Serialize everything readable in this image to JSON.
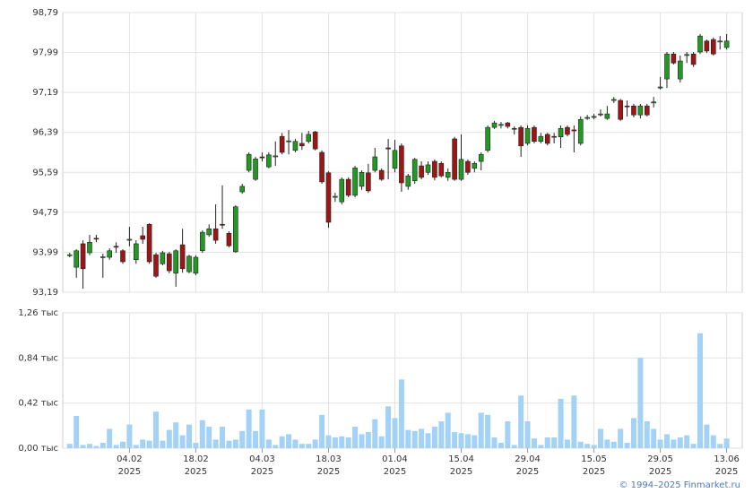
{
  "chart_data": [
    {
      "type": "candlestick",
      "ylim": [
        93.19,
        98.79
      ],
      "yticks": [
        {
          "value": 93.19,
          "label": "93,19"
        },
        {
          "value": 93.99,
          "label": "93,99"
        },
        {
          "value": 94.79,
          "label": "94,79"
        },
        {
          "value": 95.59,
          "label": "95,59"
        },
        {
          "value": 96.39,
          "label": "96,39"
        },
        {
          "value": 97.19,
          "label": "97,19"
        },
        {
          "value": 97.99,
          "label": "97,99"
        },
        {
          "value": 98.79,
          "label": "98,79"
        }
      ],
      "grid": true,
      "up_color": "#229922",
      "down_color": "#9e1515",
      "open": [
        93.93,
        93.69,
        94.16,
        93.98,
        94.27,
        93.89,
        93.89,
        94.11,
        94.02,
        94.23,
        93.84,
        94.32,
        94.55,
        93.94,
        93.76,
        93.96,
        93.57,
        94.14,
        93.6,
        93.57,
        94.02,
        94.34,
        94.46,
        94.55,
        94.37,
        94.0,
        95.2,
        95.63,
        95.45,
        95.9,
        95.7,
        95.9,
        96.31,
        96.21,
        96.03,
        96.17,
        96.21,
        96.4,
        95.99,
        95.58,
        95.09,
        95.0,
        95.45,
        95.13,
        95.31,
        95.58,
        95.63,
        95.63,
        96.08,
        95.67,
        96.12,
        95.31,
        95.42,
        95.72,
        95.59,
        95.81,
        95.77,
        95.49,
        96.26,
        95.45,
        95.81,
        95.67,
        95.81,
        96.03,
        96.49,
        96.53,
        96.58,
        96.47,
        96.49,
        96.17,
        96.49,
        96.21,
        96.35,
        96.31,
        96.3,
        96.49,
        96.44,
        96.17,
        96.67,
        96.69,
        96.74,
        96.67,
        97.03,
        97.03,
        96.92,
        96.92,
        96.74,
        96.92,
        96.98,
        97.28,
        97.46,
        97.96,
        97.46,
        97.93,
        97.96,
        98.0,
        98.22,
        98.25,
        98.2,
        98.09
      ],
      "high": [
        93.98,
        94.05,
        94.23,
        94.34,
        94.34,
        93.96,
        94.07,
        94.19,
        94.05,
        94.5,
        94.23,
        94.5,
        94.57,
        93.98,
        94.02,
        94.0,
        94.05,
        94.46,
        93.94,
        93.93,
        94.43,
        94.55,
        94.95,
        95.33,
        94.41,
        94.93,
        95.36,
        95.99,
        95.9,
        95.99,
        95.99,
        96.21,
        96.38,
        96.44,
        96.26,
        96.38,
        96.42,
        96.42,
        96.03,
        95.61,
        95.18,
        95.49,
        95.49,
        95.72,
        95.63,
        95.76,
        96.08,
        95.67,
        96.26,
        96.24,
        96.17,
        95.56,
        95.88,
        95.81,
        95.81,
        95.85,
        95.81,
        95.67,
        96.3,
        96.35,
        95.85,
        95.81,
        95.99,
        96.53,
        96.62,
        96.6,
        96.6,
        96.51,
        96.53,
        96.53,
        96.53,
        96.38,
        96.38,
        96.38,
        96.53,
        96.53,
        96.53,
        96.71,
        96.74,
        96.76,
        96.85,
        96.92,
        97.1,
        97.06,
        97.03,
        96.96,
        96.96,
        96.96,
        97.1,
        97.5,
        98.0,
        98.0,
        97.93,
        98.0,
        98.0,
        98.36,
        98.25,
        98.29,
        98.32,
        98.36
      ],
      "low": [
        93.89,
        93.48,
        93.26,
        93.93,
        94.19,
        93.48,
        93.84,
        93.98,
        93.76,
        94.11,
        93.76,
        94.16,
        93.76,
        93.48,
        93.73,
        93.57,
        93.3,
        93.58,
        93.57,
        93.53,
        93.98,
        94.3,
        94.16,
        94.46,
        94.09,
        93.98,
        95.16,
        95.59,
        95.42,
        95.81,
        95.67,
        95.72,
        95.95,
        95.95,
        95.99,
        96.04,
        96.17,
        96.03,
        95.36,
        94.48,
        95.0,
        94.95,
        95.09,
        95.09,
        95.24,
        95.18,
        95.59,
        95.42,
        95.45,
        95.59,
        95.2,
        95.24,
        95.36,
        95.45,
        95.54,
        95.43,
        95.49,
        95.42,
        95.42,
        95.42,
        95.54,
        95.59,
        95.63,
        95.99,
        96.46,
        96.47,
        96.47,
        96.35,
        95.9,
        96.13,
        96.17,
        96.17,
        96.13,
        96.17,
        96.08,
        96.31,
        95.99,
        96.13,
        96.64,
        96.65,
        96.71,
        96.64,
        96.98,
        96.62,
        96.71,
        96.69,
        96.67,
        96.71,
        96.89,
        97.25,
        97.28,
        97.75,
        97.39,
        97.78,
        97.7,
        97.96,
        97.98,
        97.93,
        98.05,
        98.05
      ],
      "close": [
        93.94,
        94.02,
        93.66,
        94.19,
        94.26,
        93.9,
        94.02,
        94.09,
        93.8,
        94.25,
        94.16,
        94.25,
        93.8,
        93.51,
        93.98,
        93.62,
        94.02,
        93.66,
        93.91,
        93.89,
        94.39,
        94.46,
        94.23,
        94.54,
        94.12,
        94.9,
        95.31,
        95.95,
        95.86,
        95.88,
        95.94,
        95.92,
        95.99,
        96.22,
        96.21,
        96.12,
        96.35,
        96.06,
        95.4,
        94.59,
        95.11,
        95.45,
        95.13,
        95.68,
        95.59,
        95.22,
        95.9,
        95.45,
        96.06,
        96.03,
        95.38,
        95.52,
        95.85,
        95.49,
        95.74,
        95.49,
        95.52,
        95.59,
        95.45,
        95.85,
        95.59,
        95.77,
        95.95,
        96.49,
        96.58,
        96.55,
        96.51,
        96.46,
        96.12,
        96.47,
        96.21,
        96.31,
        96.17,
        96.3,
        96.47,
        96.35,
        96.42,
        96.65,
        96.69,
        96.71,
        96.76,
        96.76,
        97.05,
        96.65,
        96.91,
        96.74,
        96.92,
        96.74,
        97.0,
        97.3,
        97.96,
        97.78,
        97.82,
        97.95,
        97.75,
        98.32,
        98.02,
        97.96,
        98.22,
        98.22
      ]
    },
    {
      "type": "bar",
      "color": "#a3d2f6",
      "grid": true,
      "x_sublabel": "2025",
      "ylim": [
        0,
        1.26
      ],
      "yticks": [
        {
          "value": 0,
          "label": "0,00 тыс"
        },
        {
          "value": 0.42,
          "label": "0,42 тыс"
        },
        {
          "value": 0.84,
          "label": "0,84 тыс"
        },
        {
          "value": 1.26,
          "label": "1,26 тыс"
        }
      ],
      "categories": [
        null,
        null,
        null,
        null,
        null,
        null,
        null,
        null,
        null,
        "04.02",
        null,
        null,
        null,
        null,
        null,
        null,
        null,
        null,
        null,
        "18.02",
        null,
        null,
        null,
        null,
        null,
        null,
        null,
        null,
        null,
        "04.03",
        null,
        null,
        null,
        null,
        null,
        null,
        null,
        null,
        null,
        "18.03",
        null,
        null,
        null,
        null,
        null,
        null,
        null,
        null,
        null,
        "01.04",
        null,
        null,
        null,
        null,
        null,
        null,
        null,
        null,
        null,
        "15.04",
        null,
        null,
        null,
        null,
        null,
        null,
        null,
        null,
        null,
        "29.04",
        null,
        null,
        null,
        null,
        null,
        null,
        null,
        null,
        null,
        "15.05",
        null,
        null,
        null,
        null,
        null,
        null,
        null,
        null,
        null,
        "29.05",
        null,
        null,
        null,
        null,
        null,
        null,
        null,
        null,
        null,
        "13.06"
      ],
      "values": [
        0.04,
        0.3,
        0.03,
        0.04,
        0.02,
        0.05,
        0.18,
        0.03,
        0.06,
        0.22,
        0.03,
        0.08,
        0.07,
        0.34,
        0.07,
        0.17,
        0.24,
        0.12,
        0.22,
        0.05,
        0.26,
        0.2,
        0.08,
        0.2,
        0.07,
        0.08,
        0.16,
        0.36,
        0.16,
        0.36,
        0.08,
        0.03,
        0.11,
        0.13,
        0.08,
        0.04,
        0.04,
        0.08,
        0.31,
        0.12,
        0.1,
        0.11,
        0.1,
        0.2,
        0.13,
        0.15,
        0.27,
        0.11,
        0.39,
        0.28,
        0.64,
        0.17,
        0.16,
        0.18,
        0.14,
        0.2,
        0.25,
        0.33,
        0.15,
        0.14,
        0.13,
        0.12,
        0.33,
        0.31,
        0.1,
        0.05,
        0.25,
        0.03,
        0.49,
        0.25,
        0.09,
        0.03,
        0.1,
        0.1,
        0.46,
        0.08,
        0.49,
        0.06,
        0.04,
        0.03,
        0.18,
        0.08,
        0.06,
        0.18,
        0.05,
        0.28,
        0.84,
        0.25,
        0.18,
        0.08,
        0.13,
        0.08,
        0.1,
        0.12,
        0.04,
        1.07,
        0.22,
        0.12,
        0.04,
        0.09
      ]
    }
  ],
  "footer": "© 1994–2025 Finmarket.ru"
}
